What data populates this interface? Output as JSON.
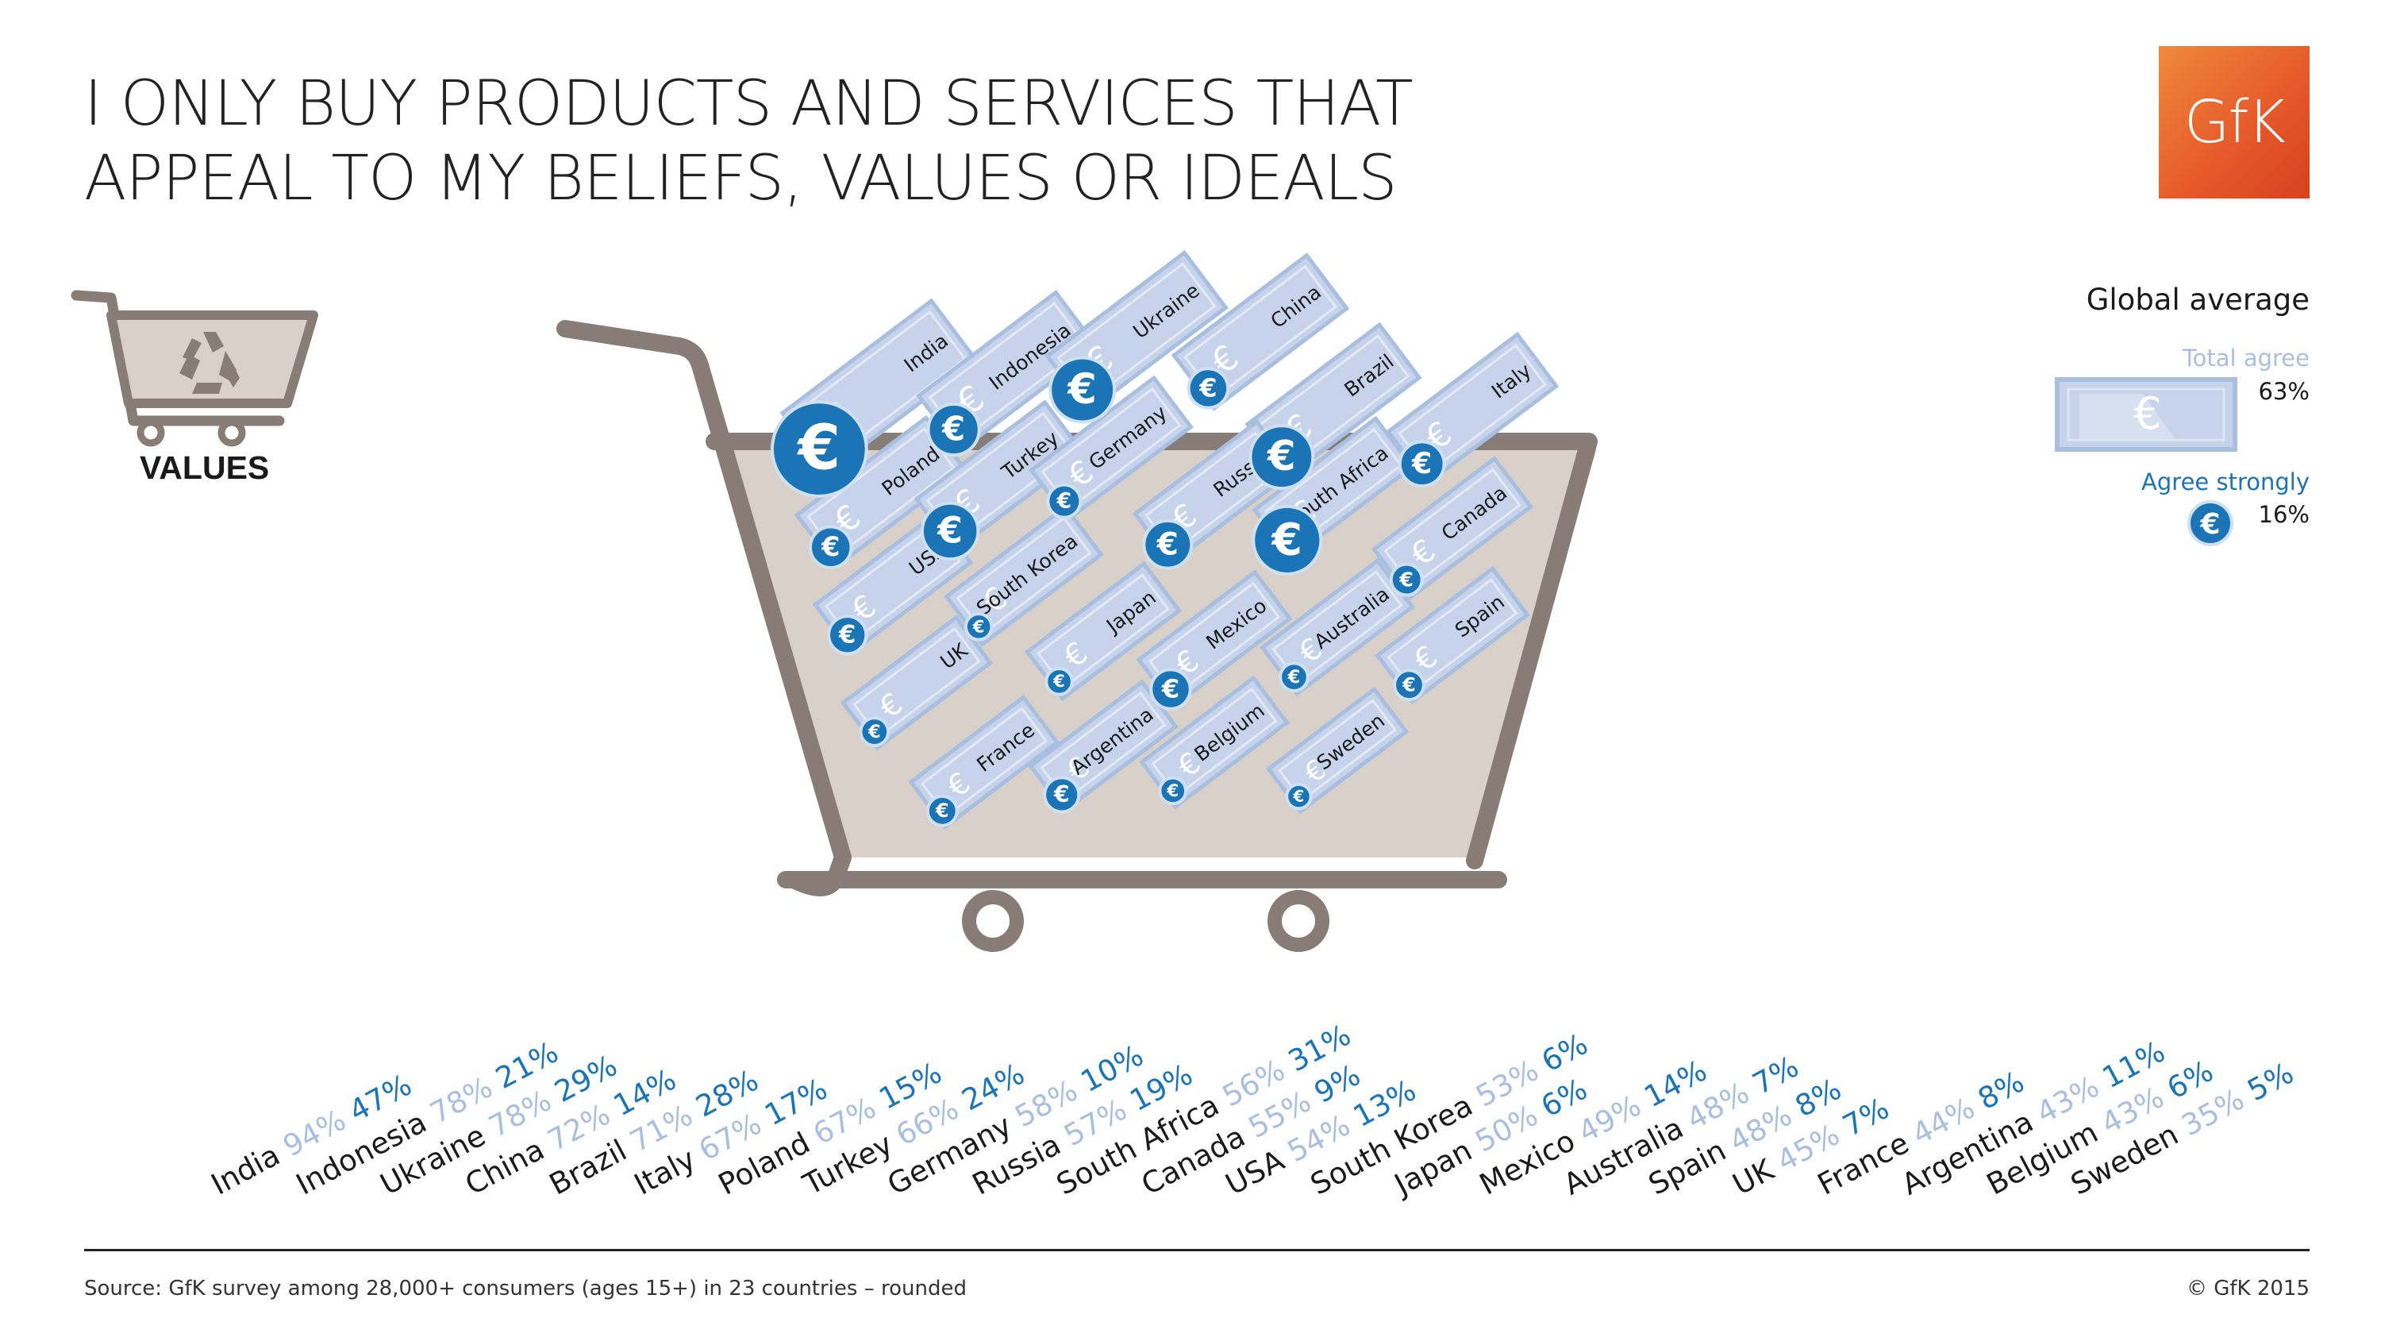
{
  "title_lines": [
    "I ONLY BUY PRODUCTS AND SERVICES THAT",
    "APPEAL TO MY BELIEFS, VALUES OR IDEALS"
  ],
  "logo_text": "GfK",
  "category_label": "VALUES",
  "legend": {
    "title": "Global average",
    "total_label": "Total agree",
    "total_value": "63%",
    "strong_label": "Agree strongly",
    "strong_value": "16%",
    "currency_symbol": "€"
  },
  "source": "Source: GfK survey among 28,000+ consumers (ages 15+) in 23 countries – rounded",
  "copyright": "© GfK 2015",
  "colors": {
    "note": "#c6d3ea",
    "note_border": "#a9bfdf",
    "coin": "#1a74b5",
    "cart_frame": "#877c76",
    "cart_fill": "#d9d0ca",
    "total_text": "#a9bfdf",
    "strong_text": "#1a74b5",
    "logo": "#e65b2b"
  },
  "icons": [
    "recycle-icon",
    "shopping-cart-icon",
    "euro-coin-icon",
    "banknote-icon"
  ],
  "chart_data": {
    "type": "bar",
    "categories": [
      "India",
      "Indonesia",
      "Ukraine",
      "China",
      "Brazil",
      "Italy",
      "Poland",
      "Turkey",
      "Germany",
      "Russia",
      "South Africa",
      "Canada",
      "USA",
      "South Korea",
      "Japan",
      "Mexico",
      "Australia",
      "Spain",
      "UK",
      "France",
      "Argentina",
      "Belgium",
      "Sweden"
    ],
    "series": [
      {
        "name": "Total agree",
        "values": [
          94,
          78,
          78,
          72,
          71,
          67,
          67,
          66,
          58,
          57,
          56,
          55,
          54,
          53,
          50,
          49,
          48,
          48,
          45,
          44,
          43,
          43,
          35
        ]
      },
      {
        "name": "Agree strongly",
        "values": [
          47,
          21,
          29,
          14,
          28,
          17,
          15,
          24,
          10,
          19,
          31,
          9,
          13,
          6,
          6,
          14,
          7,
          8,
          7,
          8,
          11,
          6,
          5
        ]
      }
    ],
    "global_average": {
      "total_agree": 63,
      "agree_strongly": 16
    },
    "unit": "%"
  }
}
